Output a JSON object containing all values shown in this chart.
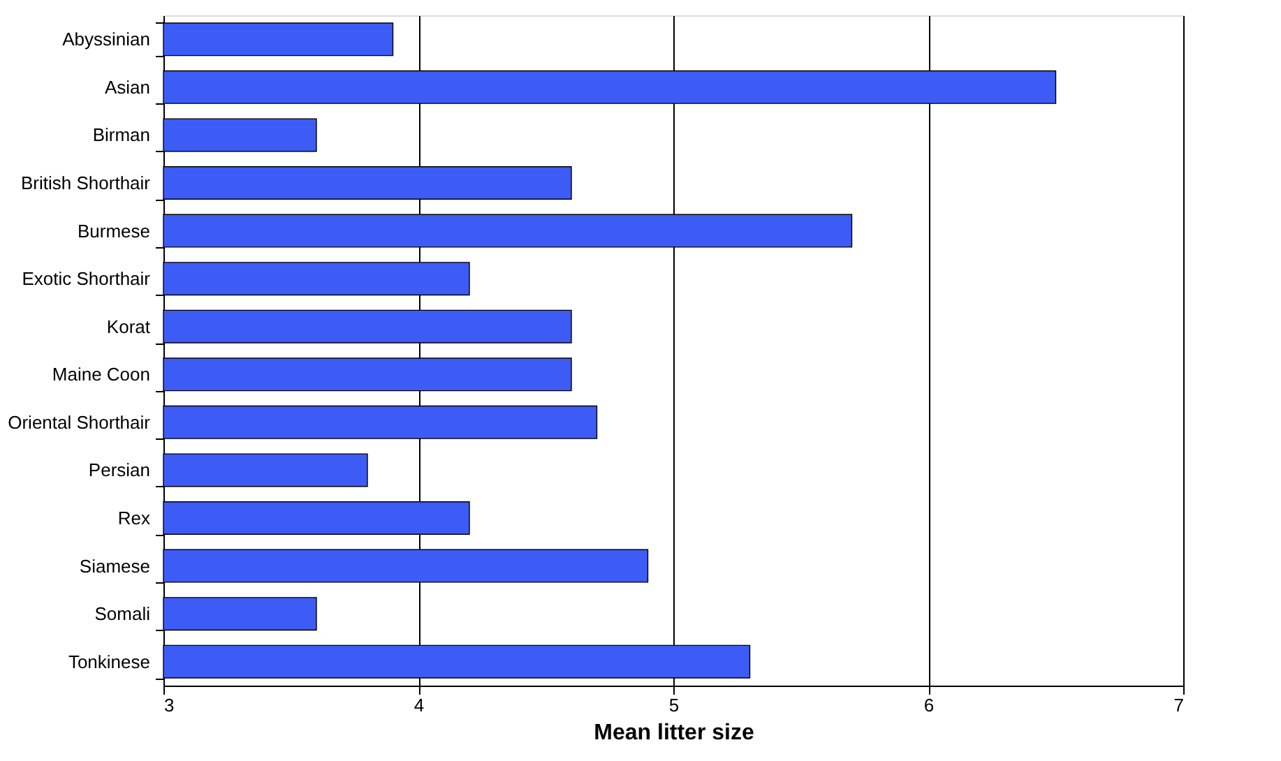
{
  "chart_data": {
    "type": "bar",
    "orientation": "horizontal",
    "xlabel": "Mean litter size",
    "categories": [
      "Abyssinian",
      "Asian",
      "Birman",
      "British Shorthair",
      "Burmese",
      "Exotic Shorthair",
      "Korat",
      "Maine Coon",
      "Oriental Shorthair",
      "Persian",
      "Rex",
      "Siamese",
      "Somali",
      "Tonkinese"
    ],
    "values": [
      3.9,
      6.5,
      3.6,
      4.6,
      5.7,
      4.2,
      4.6,
      4.6,
      4.7,
      3.8,
      4.2,
      4.9,
      3.6,
      5.3
    ],
    "color": "#3d5cf5",
    "xlim": [
      3,
      7
    ],
    "xticks": [
      3,
      4,
      5,
      6,
      7
    ],
    "grid": "x"
  }
}
